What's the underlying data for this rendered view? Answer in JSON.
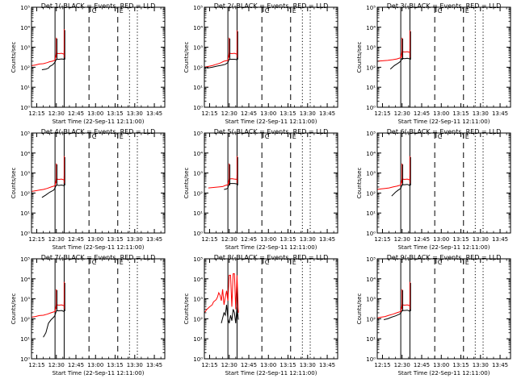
{
  "figure": {
    "type": "line",
    "xlabel": "Start Time (22-Sep-11 12:11:00)",
    "ylabel": "Counts/sec",
    "x_ticks": [
      "12:15",
      "12:30",
      "12:45",
      "13:00",
      "13:15",
      "13:30",
      "13:45"
    ],
    "y_ticks": [
      "10⁰",
      "10¹",
      "10²",
      "10³",
      "10⁴",
      "10⁵"
    ],
    "y_scale": "log",
    "ylim": [
      1,
      100000
    ],
    "xlim": [
      "12:11",
      "13:53"
    ],
    "colors": {
      "events": "#000000",
      "lld": "#ff0000"
    },
    "markers": {
      "solid": [
        "12:29",
        "12:36"
      ],
      "dashed": [
        "12:55",
        "13:17"
      ],
      "dotted": [
        "13:26",
        "13:32"
      ],
      "flags": [
        {
          "label": "C",
          "x": "12:56"
        },
        {
          "label": "E",
          "x": "13:17"
        }
      ]
    }
  },
  "chart_data": [
    {
      "type": "line",
      "title": "Det 1(-BLACK = Events, RED = LLD",
      "series": [
        {
          "name": "Events",
          "color": "#000000",
          "x": [
            "12:19",
            "12:22",
            "12:24",
            "12:25",
            "12:26",
            "12:27",
            "12:28",
            "12:29",
            "12:30",
            "12:32",
            "12:34",
            "12:36",
            "12:36"
          ],
          "y": [
            75,
            80,
            90,
            110,
            120,
            130,
            150,
            180,
            250,
            250,
            260,
            250,
            500
          ]
        },
        {
          "name": "LLD",
          "color": "#ff0000",
          "x": [
            "12:11",
            "12:14",
            "12:17",
            "12:20",
            "12:23",
            "12:25",
            "12:27",
            "12:29",
            "12:30",
            "12:32",
            "12:34",
            "12:36",
            "12:36"
          ],
          "y": [
            120,
            130,
            145,
            150,
            170,
            190,
            200,
            230,
            500,
            480,
            500,
            450,
            700
          ]
        }
      ],
      "spikes": [
        {
          "x": "12:30",
          "y": 3000
        },
        {
          "x": "12:36",
          "y": 8000
        }
      ]
    },
    {
      "type": "line",
      "title": "Det 2(-BLACK = Events, RED = LLD",
      "series": [
        {
          "name": "Events",
          "color": "#000000",
          "x": [
            "12:13",
            "12:17",
            "12:21",
            "12:24",
            "12:27",
            "12:29",
            "12:30",
            "12:32",
            "12:34",
            "12:36",
            "12:36"
          ],
          "y": [
            90,
            100,
            115,
            125,
            140,
            170,
            250,
            250,
            250,
            240,
            500
          ]
        },
        {
          "name": "LLD",
          "color": "#ff0000",
          "x": [
            "12:11",
            "12:14",
            "12:17",
            "12:20",
            "12:23",
            "12:26",
            "12:29",
            "12:30",
            "12:32",
            "12:34",
            "12:36",
            "12:36"
          ],
          "y": [
            100,
            110,
            120,
            140,
            160,
            200,
            220,
            500,
            480,
            500,
            450,
            700
          ]
        }
      ],
      "spikes": [
        {
          "x": "12:30",
          "y": 3000
        },
        {
          "x": "12:36",
          "y": 7000
        }
      ]
    },
    {
      "type": "line",
      "title": "Det 3(-BLACK = Events, RED = LLD",
      "series": [
        {
          "name": "Events",
          "color": "#000000",
          "x": [
            "12:21",
            "12:24",
            "12:27",
            "12:29",
            "12:30",
            "12:32",
            "12:34",
            "12:36",
            "12:36"
          ],
          "y": [
            80,
            120,
            160,
            200,
            280,
            270,
            280,
            260,
            600
          ]
        },
        {
          "name": "LLD",
          "color": "#ff0000",
          "x": [
            "12:11",
            "12:15",
            "12:19",
            "12:23",
            "12:26",
            "12:29",
            "12:30",
            "12:32",
            "12:34",
            "12:36",
            "12:36"
          ],
          "y": [
            200,
            210,
            220,
            240,
            260,
            300,
            600,
            580,
            600,
            550,
            800
          ]
        }
      ],
      "spikes": [
        {
          "x": "12:30",
          "y": 3000
        },
        {
          "x": "12:36",
          "y": 7000
        }
      ]
    },
    {
      "type": "line",
      "title": "Det 4(-BLACK = Events, RED = LLD",
      "series": [
        {
          "name": "Events",
          "color": "#000000",
          "x": [
            "12:19",
            "12:22",
            "12:25",
            "12:28",
            "12:29",
            "12:30",
            "12:32",
            "12:34",
            "12:36",
            "12:36"
          ],
          "y": [
            60,
            80,
            110,
            140,
            180,
            250,
            240,
            250,
            230,
            500
          ]
        },
        {
          "name": "LLD",
          "color": "#ff0000",
          "x": [
            "12:11",
            "12:14",
            "12:17",
            "12:20",
            "12:23",
            "12:26",
            "12:29",
            "12:30",
            "12:32",
            "12:34",
            "12:36",
            "12:36"
          ],
          "y": [
            120,
            130,
            140,
            150,
            170,
            200,
            230,
            500,
            480,
            500,
            450,
            700
          ]
        }
      ],
      "spikes": [
        {
          "x": "12:30",
          "y": 3000
        },
        {
          "x": "12:36",
          "y": 7000
        }
      ]
    },
    {
      "type": "line",
      "title": "Det 5(-BLACK = Events, RED = LLD",
      "series": [
        {
          "name": "Events",
          "color": "#000000",
          "x": [
            "12:26",
            "12:28",
            "12:29",
            "12:30",
            "12:32",
            "12:34",
            "12:36",
            "12:36"
          ],
          "y": [
            150,
            160,
            180,
            300,
            300,
            300,
            280,
            600
          ]
        },
        {
          "name": "LLD",
          "color": "#ff0000",
          "x": [
            "12:14",
            "12:18",
            "12:22",
            "12:25",
            "12:27",
            "12:29",
            "12:30",
            "12:32",
            "12:34",
            "12:36",
            "12:36"
          ],
          "y": [
            180,
            190,
            200,
            210,
            240,
            260,
            500,
            520,
            500,
            480,
            800
          ]
        }
      ],
      "spikes": [
        {
          "x": "12:30",
          "y": 3000
        },
        {
          "x": "12:36",
          "y": 7000
        }
      ]
    },
    {
      "type": "line",
      "title": "Det 6(-BLACK = Events, RED = LLD",
      "series": [
        {
          "name": "Events",
          "color": "#000000",
          "x": [
            "12:22",
            "12:25",
            "12:27",
            "12:29",
            "12:30",
            "12:32",
            "12:34",
            "12:36",
            "12:36"
          ],
          "y": [
            70,
            110,
            140,
            170,
            260,
            260,
            270,
            240,
            500
          ]
        },
        {
          "name": "LLD",
          "color": "#ff0000",
          "x": [
            "12:11",
            "12:14",
            "12:17",
            "12:20",
            "12:23",
            "12:26",
            "12:29",
            "12:30",
            "12:32",
            "12:34",
            "12:36",
            "12:36"
          ],
          "y": [
            150,
            160,
            170,
            180,
            200,
            220,
            250,
            500,
            480,
            500,
            450,
            700
          ]
        }
      ],
      "spikes": [
        {
          "x": "12:30",
          "y": 3000
        },
        {
          "x": "12:36",
          "y": 7000
        }
      ]
    },
    {
      "type": "line",
      "title": "Det 7(-BLACK = Events, RED = LLD",
      "series": [
        {
          "name": "Events",
          "color": "#000000",
          "x": [
            "12:20",
            "12:22",
            "12:24",
            "12:26",
            "12:28",
            "12:29",
            "12:30",
            "12:32",
            "12:34",
            "12:36",
            "12:36"
          ],
          "y": [
            12,
            20,
            60,
            90,
            120,
            150,
            250,
            250,
            260,
            230,
            500
          ]
        },
        {
          "name": "LLD",
          "color": "#ff0000",
          "x": [
            "12:11",
            "12:14",
            "12:17",
            "12:20",
            "12:23",
            "12:26",
            "12:29",
            "12:30",
            "12:32",
            "12:34",
            "12:36",
            "12:36"
          ],
          "y": [
            120,
            130,
            145,
            150,
            170,
            200,
            230,
            500,
            480,
            500,
            450,
            700
          ]
        }
      ],
      "spikes": [
        {
          "x": "12:30",
          "y": 3000
        },
        {
          "x": "12:36",
          "y": 7000
        }
      ]
    },
    {
      "type": "line",
      "title": "Det 8(-BLACK = Events, RED = LLD",
      "series": [
        {
          "name": "Events",
          "color": "#000000",
          "x": [
            "12:24",
            "12:26",
            "12:27",
            "12:28",
            "12:29",
            "12:30",
            "12:31",
            "12:32",
            "12:33",
            "12:34",
            "12:35",
            "12:36",
            "12:37"
          ],
          "y": [
            60,
            200,
            150,
            500,
            100,
            60,
            150,
            80,
            300,
            200,
            60,
            400,
            90
          ]
        },
        {
          "name": "LLD",
          "color": "#ff0000",
          "x": [
            "12:11",
            "12:13",
            "12:15",
            "12:17",
            "12:18",
            "12:20",
            "12:21",
            "12:22",
            "12:23",
            "12:24",
            "12:25",
            "12:26",
            "12:27",
            "12:28",
            "12:29",
            "12:30",
            "12:31",
            "12:32",
            "12:33",
            "12:34",
            "12:35",
            "12:36",
            "12:37"
          ],
          "y": [
            200,
            300,
            400,
            500,
            700,
            900,
            1200,
            2000,
            1500,
            800,
            3000,
            500,
            1200,
            2500,
            800,
            15000,
            15000,
            400,
            18000,
            18000,
            300,
            15000,
            200
          ]
        }
      ],
      "spikes": []
    },
    {
      "type": "line",
      "title": "Det 9(-BLACK = Events, RED = LLD",
      "series": [
        {
          "name": "Events",
          "color": "#000000",
          "x": [
            "12:16",
            "12:19",
            "12:22",
            "12:25",
            "12:28",
            "12:29",
            "12:30",
            "12:32",
            "12:34",
            "12:36",
            "12:36"
          ],
          "y": [
            90,
            100,
            120,
            140,
            170,
            190,
            260,
            260,
            270,
            240,
            500
          ]
        },
        {
          "name": "LLD",
          "color": "#ff0000",
          "x": [
            "12:11",
            "12:14",
            "12:17",
            "12:20",
            "12:23",
            "12:26",
            "12:29",
            "12:30",
            "12:32",
            "12:34",
            "12:36",
            "12:36"
          ],
          "y": [
            110,
            120,
            130,
            150,
            170,
            200,
            230,
            500,
            480,
            500,
            450,
            700
          ]
        }
      ],
      "spikes": [
        {
          "x": "12:30",
          "y": 3000
        },
        {
          "x": "12:36",
          "y": 7000
        }
      ]
    }
  ]
}
